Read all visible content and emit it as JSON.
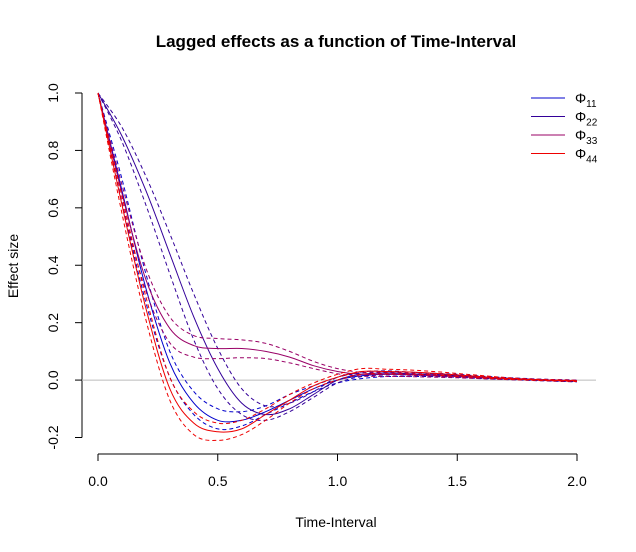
{
  "chart_data": {
    "type": "line",
    "title": "Lagged effects as a function of Time-Interval",
    "xlabel": "Time-Interval",
    "ylabel": "Effect size",
    "xlim": [
      0,
      2
    ],
    "ylim": [
      -0.2,
      1.0
    ],
    "x_ticks": [
      "0.0",
      "0.5",
      "1.0",
      "1.5",
      "2.0"
    ],
    "y_ticks": [
      "-0.2",
      "0.0",
      "0.2",
      "0.4",
      "0.6",
      "0.8",
      "1.0"
    ],
    "grid": false,
    "reference_line": 0,
    "legend_position": "top-right",
    "x": [
      0,
      0.1,
      0.2,
      0.3,
      0.4,
      0.5,
      0.6,
      0.7,
      0.8,
      0.9,
      1.0,
      1.1,
      1.2,
      1.3,
      1.4,
      1.5,
      1.6,
      1.7,
      1.8,
      1.9,
      2.0
    ],
    "series": [
      {
        "name": "Φ11",
        "symbol": "Φ",
        "subscript": "11",
        "color": "#0000cc",
        "values": [
          1.0,
          0.66,
          0.32,
          0.06,
          -0.08,
          -0.14,
          -0.14,
          -0.11,
          -0.07,
          -0.03,
          0.0,
          0.015,
          0.02,
          0.02,
          0.018,
          0.015,
          0.01,
          0.006,
          0.003,
          0.0,
          -0.003
        ],
        "lower": [
          1.0,
          0.62,
          0.27,
          0.01,
          -0.12,
          -0.17,
          -0.16,
          -0.12,
          -0.08,
          -0.04,
          -0.01,
          0.005,
          0.012,
          0.013,
          0.012,
          0.01,
          0.006,
          0.003,
          0.0,
          -0.003,
          -0.006
        ],
        "upper": [
          1.0,
          0.7,
          0.37,
          0.1,
          -0.04,
          -0.1,
          -0.11,
          -0.09,
          -0.05,
          -0.02,
          0.01,
          0.025,
          0.028,
          0.027,
          0.024,
          0.02,
          0.014,
          0.009,
          0.005,
          0.002,
          0.0
        ]
      },
      {
        "name": "Φ22",
        "symbol": "Φ",
        "subscript": "22",
        "color": "#330099",
        "values": [
          1.0,
          0.85,
          0.66,
          0.44,
          0.22,
          0.04,
          -0.08,
          -0.12,
          -0.1,
          -0.05,
          0.0,
          0.02,
          0.025,
          0.022,
          0.018,
          0.013,
          0.008,
          0.004,
          0.001,
          -0.002,
          -0.004
        ],
        "lower": [
          1.0,
          0.83,
          0.61,
          0.37,
          0.14,
          -0.03,
          -0.12,
          -0.14,
          -0.11,
          -0.06,
          -0.01,
          0.012,
          0.018,
          0.017,
          0.014,
          0.01,
          0.005,
          0.002,
          -0.001,
          -0.004,
          -0.006
        ],
        "upper": [
          1.0,
          0.88,
          0.71,
          0.51,
          0.3,
          0.11,
          -0.03,
          -0.09,
          -0.08,
          -0.04,
          0.01,
          0.028,
          0.032,
          0.028,
          0.022,
          0.016,
          0.011,
          0.007,
          0.003,
          0.0,
          -0.002
        ]
      },
      {
        "name": "Φ33",
        "symbol": "Φ",
        "subscript": "33",
        "color": "#990066",
        "values": [
          1.0,
          0.65,
          0.35,
          0.18,
          0.12,
          0.11,
          0.11,
          0.1,
          0.08,
          0.05,
          0.03,
          0.02,
          0.02,
          0.018,
          0.015,
          0.012,
          0.008,
          0.005,
          0.002,
          0.0,
          -0.002
        ],
        "lower": [
          1.0,
          0.62,
          0.31,
          0.13,
          0.08,
          0.075,
          0.078,
          0.075,
          0.06,
          0.04,
          0.022,
          0.014,
          0.013,
          0.012,
          0.01,
          0.008,
          0.005,
          0.002,
          0.0,
          -0.002,
          -0.004
        ],
        "upper": [
          1.0,
          0.68,
          0.39,
          0.22,
          0.155,
          0.145,
          0.14,
          0.128,
          0.1,
          0.065,
          0.04,
          0.027,
          0.026,
          0.024,
          0.02,
          0.016,
          0.011,
          0.007,
          0.004,
          0.002,
          0.0
        ]
      },
      {
        "name": "Φ44",
        "symbol": "Φ",
        "subscript": "44",
        "color": "#ee0000",
        "values": [
          1.0,
          0.61,
          0.25,
          -0.03,
          -0.15,
          -0.18,
          -0.17,
          -0.12,
          -0.07,
          -0.02,
          0.01,
          0.03,
          0.03,
          0.028,
          0.024,
          0.018,
          0.012,
          0.006,
          0.002,
          -0.001,
          -0.003
        ],
        "lower": [
          1.0,
          0.58,
          0.21,
          -0.07,
          -0.19,
          -0.21,
          -0.19,
          -0.14,
          -0.08,
          -0.03,
          0.0,
          0.02,
          0.022,
          0.021,
          0.018,
          0.013,
          0.008,
          0.003,
          0.0,
          -0.003,
          -0.005
        ],
        "upper": [
          1.0,
          0.64,
          0.29,
          0.01,
          -0.11,
          -0.15,
          -0.14,
          -0.1,
          -0.05,
          -0.01,
          0.02,
          0.04,
          0.038,
          0.035,
          0.03,
          0.023,
          0.016,
          0.009,
          0.004,
          0.001,
          -0.001
        ]
      }
    ]
  }
}
